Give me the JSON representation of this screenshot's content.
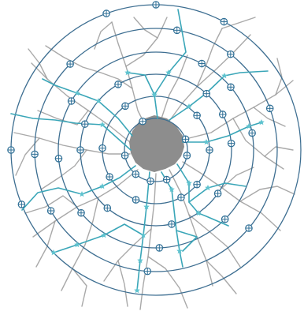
{
  "figure": {
    "kind": "concentric-ring sholl-style analysis over branching network",
    "ring_count": 6,
    "colors": {
      "background": "#ffffff",
      "rings": "#3d6e91",
      "branches": "#9a9a9a",
      "soma": "#8d8d8d",
      "traced_path": "#3aa6b8",
      "path_marker": "#5fc3cf",
      "intersection_marker": "#2f6f96"
    },
    "icons": {
      "intersection": "circle-cross-marker",
      "path_node": "star-marker"
    }
  }
}
